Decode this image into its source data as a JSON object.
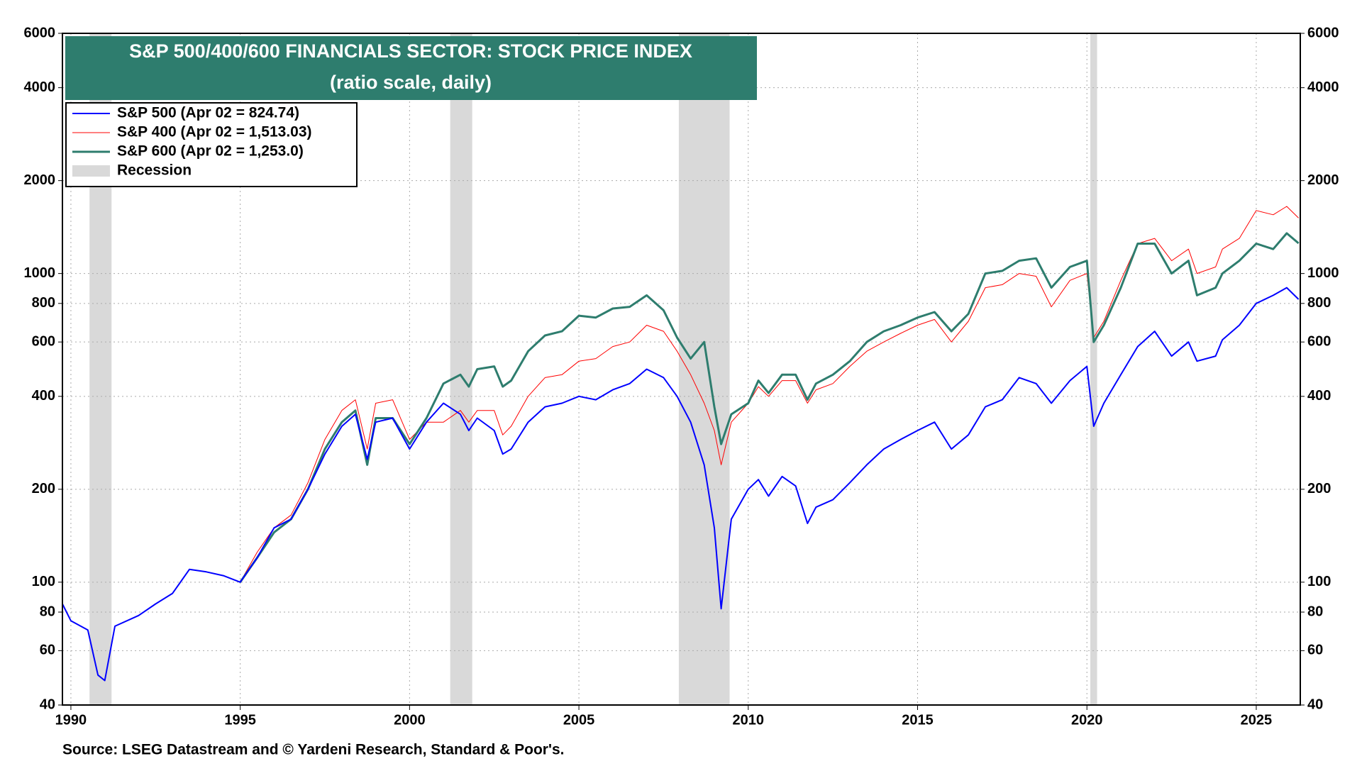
{
  "chart_data": {
    "type": "line",
    "title": "S&P 500/400/600 FINANCIALS SECTOR: STOCK PRICE INDEX",
    "subtitle": "(ratio scale, daily)",
    "source": "Source: LSEG Datastream and © Yardeni Research, Standard & Poor's.",
    "log_scale": true,
    "grid": true,
    "legend_position": "upper-left",
    "xlim": [
      1989.75,
      2026.3
    ],
    "xticks": [
      1990,
      1995,
      2000,
      2005,
      2010,
      2015,
      2020,
      2025
    ],
    "ylim": [
      40,
      6000
    ],
    "yticks": [
      40,
      60,
      80,
      100,
      200,
      400,
      600,
      800,
      1000,
      2000,
      4000,
      6000
    ],
    "recession": {
      "name": "Recession",
      "color": "#d9d9d9",
      "periods": [
        [
          1990.55,
          1991.2
        ],
        [
          2001.2,
          2001.85
        ],
        [
          2007.95,
          2009.45
        ],
        [
          2020.1,
          2020.3
        ]
      ]
    },
    "series": [
      {
        "name": "S&P 500 (Apr 02 = 824.74)",
        "color": "#0000ff",
        "width": 2,
        "x": [
          1989.75,
          1990,
          1990.5,
          1990.8,
          1991,
          1991.3,
          1992,
          1992.5,
          1993,
          1993.5,
          1994,
          1994.5,
          1995,
          1995.5,
          1996,
          1996.5,
          1997,
          1997.5,
          1998,
          1998.4,
          1998.75,
          1999,
          1999.5,
          2000,
          2000.5,
          2001,
          2001.5,
          2001.75,
          2002,
          2002.5,
          2002.75,
          2003,
          2003.5,
          2004,
          2004.5,
          2005,
          2005.5,
          2006,
          2006.5,
          2007,
          2007.5,
          2007.9,
          2008.3,
          2008.7,
          2009,
          2009.2,
          2009.5,
          2010,
          2010.3,
          2010.6,
          2011,
          2011.4,
          2011.75,
          2012,
          2012.5,
          2013,
          2013.5,
          2014,
          2014.5,
          2015,
          2015.5,
          2016,
          2016.5,
          2017,
          2017.5,
          2018,
          2018.5,
          2018.95,
          2019.5,
          2020,
          2020.2,
          2020.5,
          2021,
          2021.5,
          2022,
          2022.5,
          2023,
          2023.25,
          2023.8,
          2024,
          2024.5,
          2025,
          2025.5,
          2025.9,
          2026.25
        ],
        "values": [
          85,
          75,
          70,
          50,
          48,
          72,
          78,
          85,
          92,
          110,
          108,
          105,
          100,
          120,
          150,
          160,
          200,
          260,
          320,
          350,
          250,
          330,
          340,
          270,
          330,
          380,
          350,
          310,
          340,
          310,
          260,
          270,
          330,
          370,
          380,
          400,
          390,
          420,
          440,
          490,
          460,
          400,
          330,
          240,
          150,
          82,
          160,
          200,
          215,
          190,
          220,
          205,
          155,
          175,
          185,
          210,
          240,
          270,
          290,
          310,
          330,
          270,
          300,
          370,
          390,
          460,
          440,
          380,
          450,
          500,
          320,
          380,
          470,
          580,
          650,
          540,
          600,
          520,
          540,
          610,
          680,
          800,
          850,
          900,
          825
        ]
      },
      {
        "name": "S&P 400 (Apr 02 = 1,513.03)",
        "color": "#ff0000",
        "width": 1,
        "x": [
          1995,
          1995.5,
          1996,
          1996.5,
          1997,
          1997.5,
          1998,
          1998.4,
          1998.75,
          1999,
          1999.5,
          2000,
          2000.5,
          2001,
          2001.5,
          2001.75,
          2002,
          2002.5,
          2002.75,
          2003,
          2003.5,
          2004,
          2004.5,
          2005,
          2005.5,
          2006,
          2006.5,
          2007,
          2007.5,
          2007.9,
          2008.3,
          2008.7,
          2009,
          2009.2,
          2009.5,
          2010,
          2010.3,
          2010.6,
          2011,
          2011.4,
          2011.75,
          2012,
          2012.5,
          2013,
          2013.5,
          2014,
          2014.5,
          2015,
          2015.5,
          2016,
          2016.5,
          2017,
          2017.5,
          2018,
          2018.5,
          2018.95,
          2019.5,
          2020,
          2020.2,
          2020.5,
          2021,
          2021.5,
          2022,
          2022.5,
          2023,
          2023.25,
          2023.8,
          2024,
          2024.5,
          2025,
          2025.5,
          2025.9,
          2026.25
        ],
        "values": [
          100,
          125,
          150,
          165,
          210,
          290,
          360,
          390,
          270,
          380,
          390,
          290,
          330,
          330,
          360,
          330,
          360,
          360,
          300,
          320,
          400,
          460,
          470,
          520,
          530,
          580,
          600,
          680,
          650,
          560,
          470,
          380,
          310,
          240,
          330,
          380,
          430,
          400,
          450,
          450,
          380,
          420,
          440,
          500,
          560,
          600,
          640,
          680,
          710,
          600,
          700,
          900,
          920,
          1000,
          980,
          780,
          950,
          1000,
          620,
          700,
          950,
          1250,
          1300,
          1100,
          1200,
          1000,
          1050,
          1200,
          1300,
          1600,
          1550,
          1650,
          1513
        ]
      },
      {
        "name": "S&P 600 (Apr 02 = 1,253.0)",
        "color": "#2e7d6e",
        "width": 3,
        "x": [
          1995,
          1995.5,
          1996,
          1996.5,
          1997,
          1997.5,
          1998,
          1998.4,
          1998.75,
          1999,
          1999.5,
          2000,
          2000.5,
          2001,
          2001.5,
          2001.75,
          2002,
          2002.5,
          2002.75,
          2003,
          2003.5,
          2004,
          2004.5,
          2005,
          2005.5,
          2006,
          2006.5,
          2007,
          2007.5,
          2007.9,
          2008.3,
          2008.7,
          2009,
          2009.2,
          2009.5,
          2010,
          2010.3,
          2010.6,
          2011,
          2011.4,
          2011.75,
          2012,
          2012.5,
          2013,
          2013.5,
          2014,
          2014.5,
          2015,
          2015.5,
          2016,
          2016.5,
          2017,
          2017.5,
          2018,
          2018.5,
          2018.95,
          2019.5,
          2020,
          2020.2,
          2020.5,
          2021,
          2021.5,
          2022,
          2022.5,
          2023,
          2023.25,
          2023.8,
          2024,
          2024.5,
          2025,
          2025.5,
          2025.9,
          2026.25
        ],
        "values": [
          100,
          120,
          145,
          160,
          200,
          270,
          330,
          360,
          240,
          340,
          340,
          280,
          340,
          440,
          470,
          430,
          490,
          500,
          430,
          450,
          560,
          630,
          650,
          730,
          720,
          770,
          780,
          850,
          760,
          620,
          530,
          600,
          370,
          280,
          350,
          380,
          450,
          410,
          470,
          470,
          390,
          440,
          470,
          520,
          600,
          650,
          680,
          720,
          750,
          650,
          740,
          1000,
          1020,
          1100,
          1120,
          900,
          1050,
          1100,
          600,
          680,
          900,
          1250,
          1250,
          1000,
          1100,
          850,
          900,
          1000,
          1100,
          1250,
          1200,
          1350,
          1253
        ]
      }
    ]
  }
}
